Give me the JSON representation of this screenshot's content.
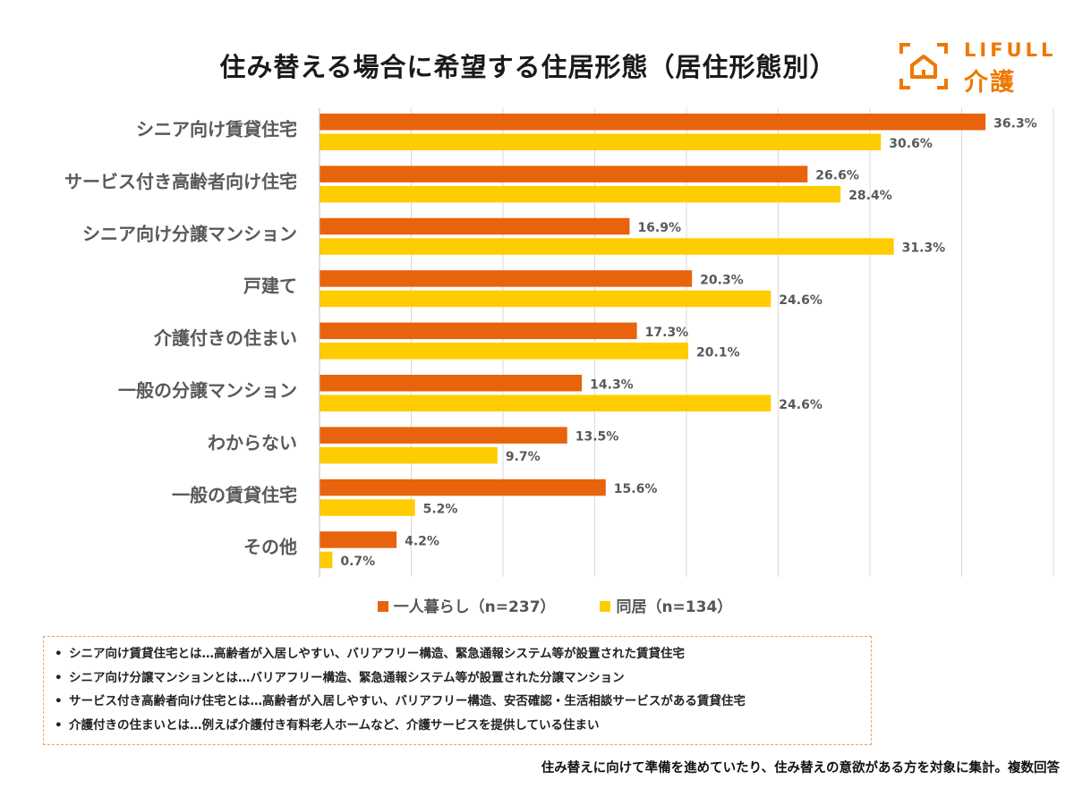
{
  "header": {
    "title": "住み替える場合に希望する住居形態（居住形態別）",
    "logo_en": "LIFULL",
    "logo_jp": "介護",
    "brand_color": "#ee7800"
  },
  "chart_data": {
    "type": "bar",
    "orientation": "horizontal",
    "title": "住み替える場合に希望する住居形態（居住形態別）",
    "categories": [
      "シニア向け賃貸住宅",
      "サービス付き高齢者向け住宅",
      "シニア向け分譲マンション",
      "戸建て",
      "介護付きの住まい",
      "一般の分譲マンション",
      "わからない",
      "一般の賃貸住宅",
      "その他"
    ],
    "series": [
      {
        "name": "一人暮らし（n=237）",
        "color": "#e8630b",
        "values": [
          36.3,
          26.6,
          16.9,
          20.3,
          17.3,
          14.3,
          13.5,
          15.6,
          4.2
        ]
      },
      {
        "name": "同居（n=134）",
        "color": "#ffcc00",
        "values": [
          30.6,
          28.4,
          31.3,
          24.6,
          20.1,
          24.6,
          9.7,
          5.2,
          0.7
        ]
      }
    ],
    "value_suffix": "%",
    "xlim": [
      0,
      40
    ],
    "grid": true,
    "legend_position": "bottom"
  },
  "notes": [
    "シニア向け賃貸住宅とは…高齢者が入居しやすい、バリアフリー構造、緊急通報システム等が設置された賃貸住宅",
    "シニア向け分譲マンションとは…バリアフリー構造、緊急通報システム等が設置された分譲マンション",
    "サービス付き高齢者向け住宅とは…高齢者が入居しやすい、バリアフリー構造、安否確認・生活相談サービスがある賃貸住宅",
    "介護付きの住まいとは…例えば介護付き有料老人ホームなど、介護サービスを提供している住まい"
  ],
  "bullet": "•",
  "footer": "住み替えに向けて準備を進めていたり、住み替えの意欲がある方を対象に集計。複数回答"
}
